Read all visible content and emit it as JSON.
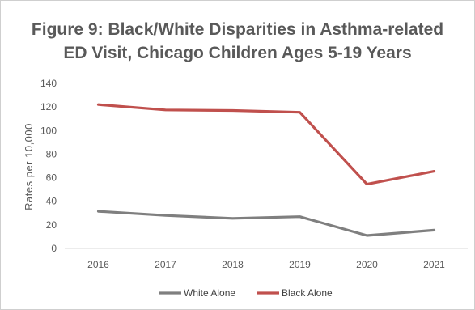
{
  "chart_data": {
    "type": "line",
    "title_lines": [
      "Figure 9: Black/White Disparities in Asthma-related",
      "ED Visit, Chicago Children Ages 5-19 Years"
    ],
    "ylabel": "Rates per 10,000",
    "xlabel": "",
    "categories": [
      "2016",
      "2017",
      "2018",
      "2019",
      "2020",
      "2021"
    ],
    "ylim": [
      0,
      140
    ],
    "yticks": [
      0,
      20,
      40,
      60,
      80,
      100,
      120,
      140
    ],
    "grid": false,
    "legend_position": "bottom",
    "series": [
      {
        "name": "White Alone",
        "color": "#7f7f7f",
        "values": [
          31.5,
          28,
          25.5,
          27,
          11,
          15.5
        ]
      },
      {
        "name": "Black Alone",
        "color": "#c0504d",
        "values": [
          122,
          117.5,
          117,
          115.5,
          54.5,
          65.5
        ]
      }
    ]
  }
}
